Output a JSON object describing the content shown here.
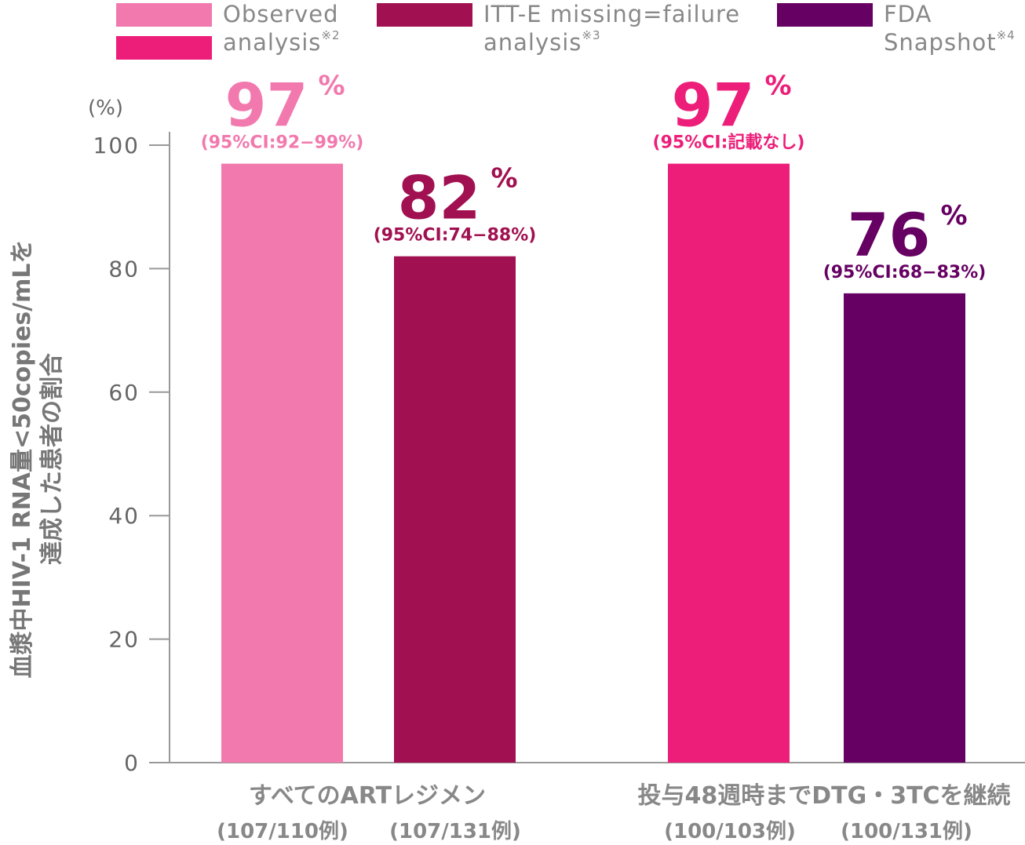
{
  "legend": [
    {
      "line1": "Observed",
      "line2": "analysis",
      "sup": "※2",
      "colors": [
        "#f279ae",
        "#ec1e79"
      ]
    },
    {
      "line1": "ITT-E missing=failure",
      "line2": "analysis",
      "sup": "※3",
      "colors": [
        "#a11050"
      ]
    },
    {
      "line1": "FDA",
      "line2": "Snapshot",
      "sup": "※4",
      "colors": [
        "#660062"
      ]
    }
  ],
  "chart_data": {
    "type": "bar",
    "ylabel_line1": "血漿中HIV-1 RNA量<50copies/mLを",
    "ylabel_line2": "達成した患者の割合",
    "yunit": "(%)",
    "ylim": [
      0,
      100
    ],
    "yticks": [
      "0",
      "20",
      "40",
      "60",
      "80",
      "100"
    ],
    "categories": [
      {
        "label": "すべてのARTレジメン",
        "n1": "(107/110例)",
        "n2": "(107/131例)"
      },
      {
        "label": "投与48週時までDTG・3TCを継続",
        "n1": "(100/103例)",
        "n2": "(100/131例)"
      }
    ],
    "bars": [
      {
        "value": 97,
        "label": "97",
        "pct": "%",
        "ci": "(95%CI:92−99%)",
        "color": "#f279ae"
      },
      {
        "value": 82,
        "label": "82",
        "pct": "%",
        "ci": "(95%CI:74−88%)",
        "color": "#a11050"
      },
      {
        "value": 97,
        "label": "97",
        "pct": "%",
        "ci": "(95%CI:記載なし)",
        "color": "#ec1e79"
      },
      {
        "value": 76,
        "label": "76",
        "pct": "%",
        "ci": "(95%CI:68−83%)",
        "color": "#660062"
      }
    ]
  }
}
